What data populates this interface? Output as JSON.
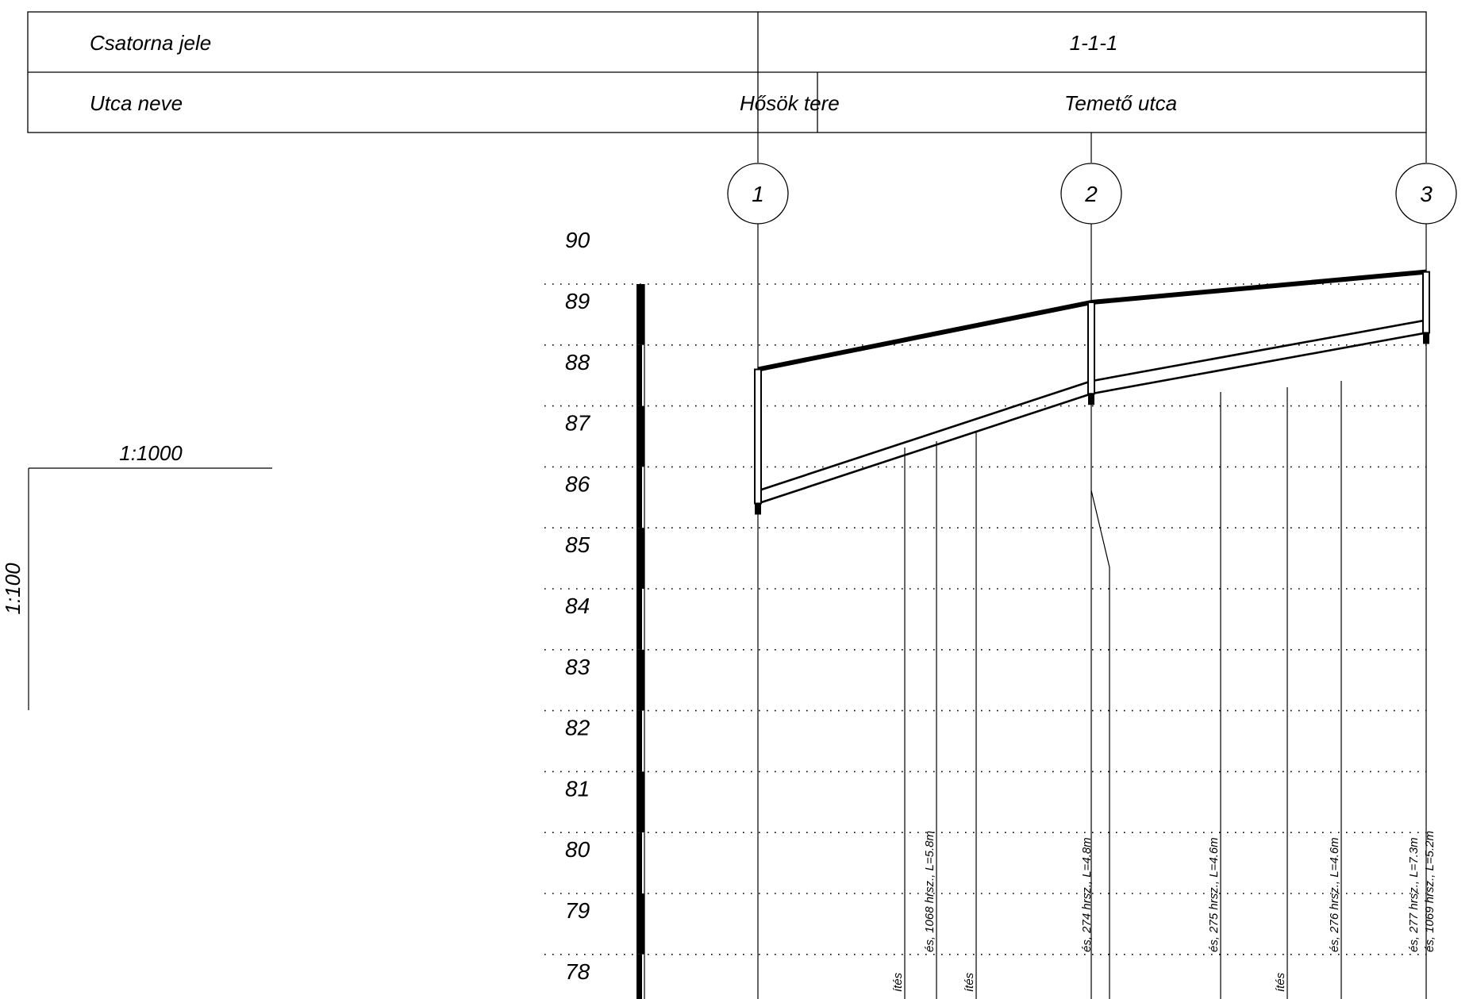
{
  "header": {
    "row1_label": "Csatorna jele",
    "row1_value": "1-1-1",
    "row2_label": "Utca neve",
    "street_1": "Hősök tere",
    "street_2": "Temető utca"
  },
  "scales": {
    "horizontal": "1:1000",
    "vertical": "1:100"
  },
  "nodes": [
    {
      "label": "1",
      "terrain": 87.6,
      "invert": 85.4
    },
    {
      "label": "2",
      "terrain": 88.7,
      "invert": 87.2
    },
    {
      "label": "3",
      "terrain": 89.2,
      "invert": 88.2
    }
  ],
  "elevations": [
    "90",
    "89",
    "88",
    "87",
    "86",
    "85",
    "84",
    "83",
    "82",
    "81",
    "80",
    "79",
    "78"
  ],
  "connections": [
    {
      "label": "ítés"
    },
    {
      "label": "és, 1068 hrsz., L=5.8m"
    },
    {
      "label": "ítés"
    },
    {
      "label": "és, 274 hrsz., L=4.8m"
    },
    {
      "label": "és, 275 hrsz., L=4.6m"
    },
    {
      "label": "ítés"
    },
    {
      "label": "és, 276 hrsz., L=4.6m"
    },
    {
      "label": "és, 277 hrsz., L=7.3m"
    },
    {
      "label": "és, 1069 hrsz., L=5.2m"
    }
  ]
}
